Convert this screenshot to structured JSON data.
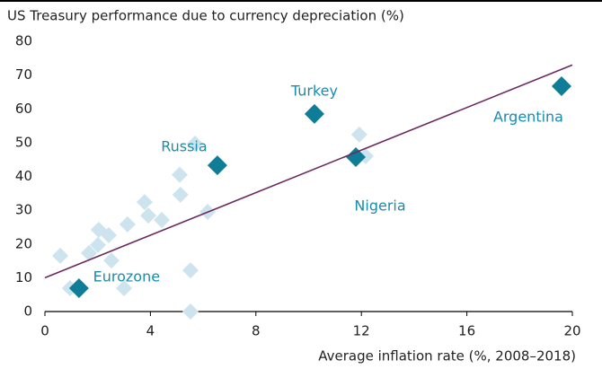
{
  "chart_data": {
    "type": "scatter",
    "title": "US Treasury performance due to currency depreciation (%)",
    "x_label": "Average inflation rate (%, 2008–2018)",
    "xlim": [
      0,
      20
    ],
    "xticks": [
      0,
      4,
      8,
      12,
      16,
      20
    ],
    "ylim": [
      0,
      80
    ],
    "yticks": [
      0,
      10,
      20,
      30,
      40,
      50,
      60,
      70,
      80
    ],
    "series": [
      {
        "color": "#cde4ef",
        "x": [
          0.58,
          0.95,
          1.67,
          2.01,
          2.04,
          2.42,
          2.52,
          3.0,
          3.13,
          3.78,
          3.92,
          4.43,
          5.11,
          5.14,
          5.69,
          5.52,
          5.52,
          6.17,
          11.92,
          12.16
        ],
        "y": [
          16.5,
          6.9,
          17.3,
          19.7,
          24.2,
          22.6,
          15.1,
          6.9,
          25.8,
          32.4,
          28.4,
          27.1,
          40.5,
          34.6,
          49.7,
          12.2,
          0,
          29.5,
          52.4,
          46.0
        ]
      },
      {
        "color": "#0f7d97",
        "x": [
          1.29,
          6.54,
          10.22,
          11.79,
          19.59
        ],
        "y": [
          6.9,
          43.3,
          58.5,
          45.7,
          66.7
        ],
        "labels": [
          "Eurozone",
          "Russia",
          "Turkey",
          "Nigeria",
          "Argentina"
        ]
      }
    ],
    "label_color": "#1b8cab",
    "trendline": {
      "color": "#6b2a5e",
      "x": [
        0,
        20
      ],
      "y": [
        10,
        73
      ]
    }
  }
}
